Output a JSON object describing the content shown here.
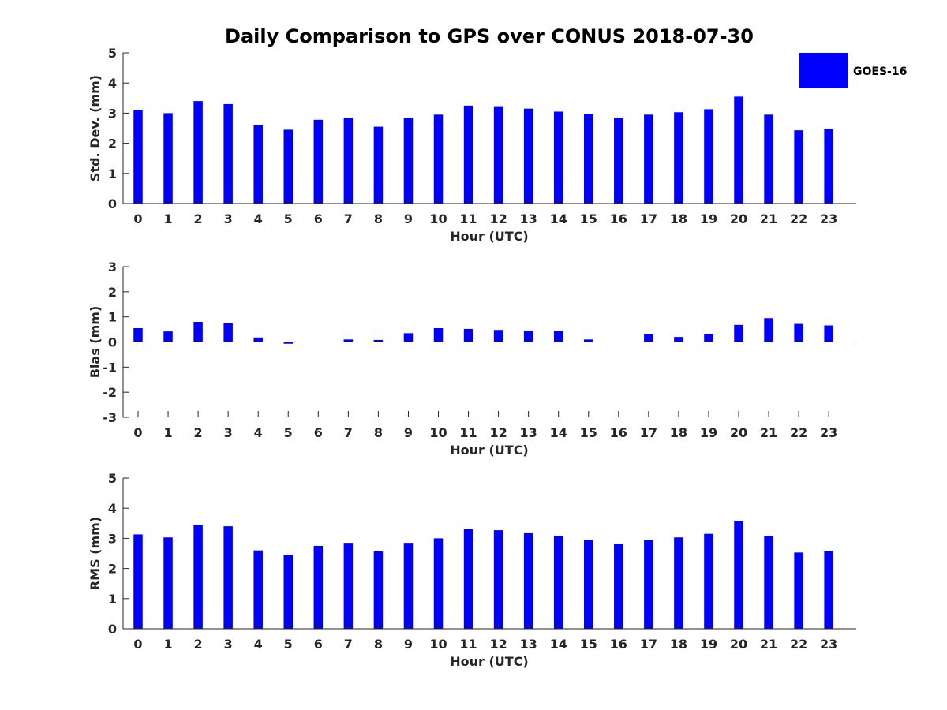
{
  "chart_data": {
    "type": "bar",
    "title": "Daily Comparison to GPS over CONUS 2018-07-30",
    "legend": {
      "label": "GOES-16",
      "placement": "top-right"
    },
    "bar_color": "#0000ff",
    "axis_color": "#262626",
    "categories": [
      "0",
      "1",
      "2",
      "3",
      "4",
      "5",
      "6",
      "7",
      "8",
      "9",
      "10",
      "11",
      "12",
      "13",
      "14",
      "15",
      "16",
      "17",
      "18",
      "19",
      "20",
      "21",
      "22",
      "23"
    ],
    "panels": [
      {
        "ylabel": "Std. Dev. (mm)",
        "xlabel": "Hour (UTC)",
        "ylim": [
          0,
          5
        ],
        "yticks": [
          "0",
          "1",
          "2",
          "3",
          "4",
          "5"
        ],
        "series": [
          {
            "name": "GOES-16",
            "values": [
              3.1,
              3.0,
              3.4,
              3.3,
              2.6,
              2.45,
              2.78,
              2.85,
              2.55,
              2.85,
              2.95,
              3.25,
              3.23,
              3.15,
              3.05,
              2.98,
              2.85,
              2.95,
              3.03,
              3.13,
              3.55,
              2.95,
              2.43,
              2.48
            ]
          }
        ]
      },
      {
        "ylabel": "Bias (mm)",
        "xlabel": "Hour (UTC)",
        "ylim": [
          -3,
          3
        ],
        "yticks": [
          "-3",
          "-2",
          "-1",
          "0",
          "1",
          "2",
          "3"
        ],
        "series": [
          {
            "name": "GOES-16",
            "values": [
              0.55,
              0.42,
              0.8,
              0.75,
              0.18,
              -0.07,
              0.0,
              0.1,
              0.08,
              0.35,
              0.55,
              0.52,
              0.48,
              0.45,
              0.45,
              0.1,
              0.0,
              0.32,
              0.2,
              0.32,
              0.68,
              0.95,
              0.72,
              0.66
            ]
          }
        ]
      },
      {
        "ylabel": "RMS (mm)",
        "xlabel": "Hour (UTC)",
        "ylim": [
          0,
          5
        ],
        "yticks": [
          "0",
          "1",
          "2",
          "3",
          "4",
          "5"
        ],
        "series": [
          {
            "name": "GOES-16",
            "values": [
              3.13,
              3.03,
              3.45,
              3.4,
              2.6,
              2.45,
              2.75,
              2.85,
              2.57,
              2.85,
              3.0,
              3.3,
              3.27,
              3.17,
              3.08,
              2.95,
              2.82,
              2.95,
              3.03,
              3.15,
              3.58,
              3.08,
              2.53,
              2.57
            ]
          }
        ]
      }
    ]
  }
}
